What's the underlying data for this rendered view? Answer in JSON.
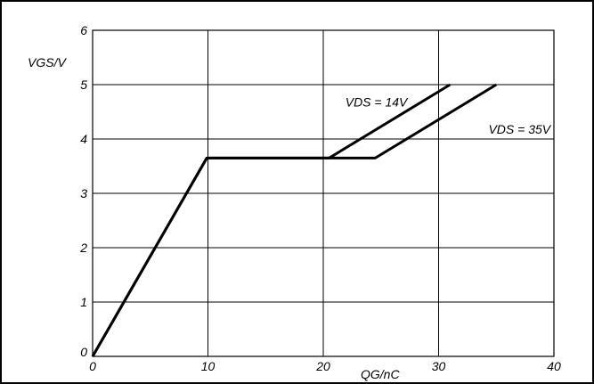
{
  "chart_data": {
    "type": "line",
    "xlabel": "QG/nC",
    "ylabel": "VGS/V",
    "xlim": [
      0,
      40
    ],
    "ylim": [
      0,
      6
    ],
    "x_ticks": [
      "0",
      "10",
      "20",
      "30",
      "40"
    ],
    "y_ticks": [
      "0",
      "1",
      "2",
      "3",
      "4",
      "5",
      "6"
    ],
    "grid": true,
    "series": [
      {
        "name": "VDS = 14V",
        "points": [
          [
            0,
            0
          ],
          [
            9.9,
            3.65
          ],
          [
            20.5,
            3.65
          ],
          [
            31,
            5
          ]
        ]
      },
      {
        "name": "VDS = 35V",
        "points": [
          [
            0,
            0
          ],
          [
            9.9,
            3.65
          ],
          [
            24.5,
            3.65
          ],
          [
            35,
            5
          ]
        ]
      }
    ],
    "annotations": [
      {
        "text": "VDS = 14V",
        "x": 24.6,
        "y": 4.6
      },
      {
        "text": "VDS = 35V",
        "x": 39.7,
        "y": 4.1
      }
    ]
  }
}
